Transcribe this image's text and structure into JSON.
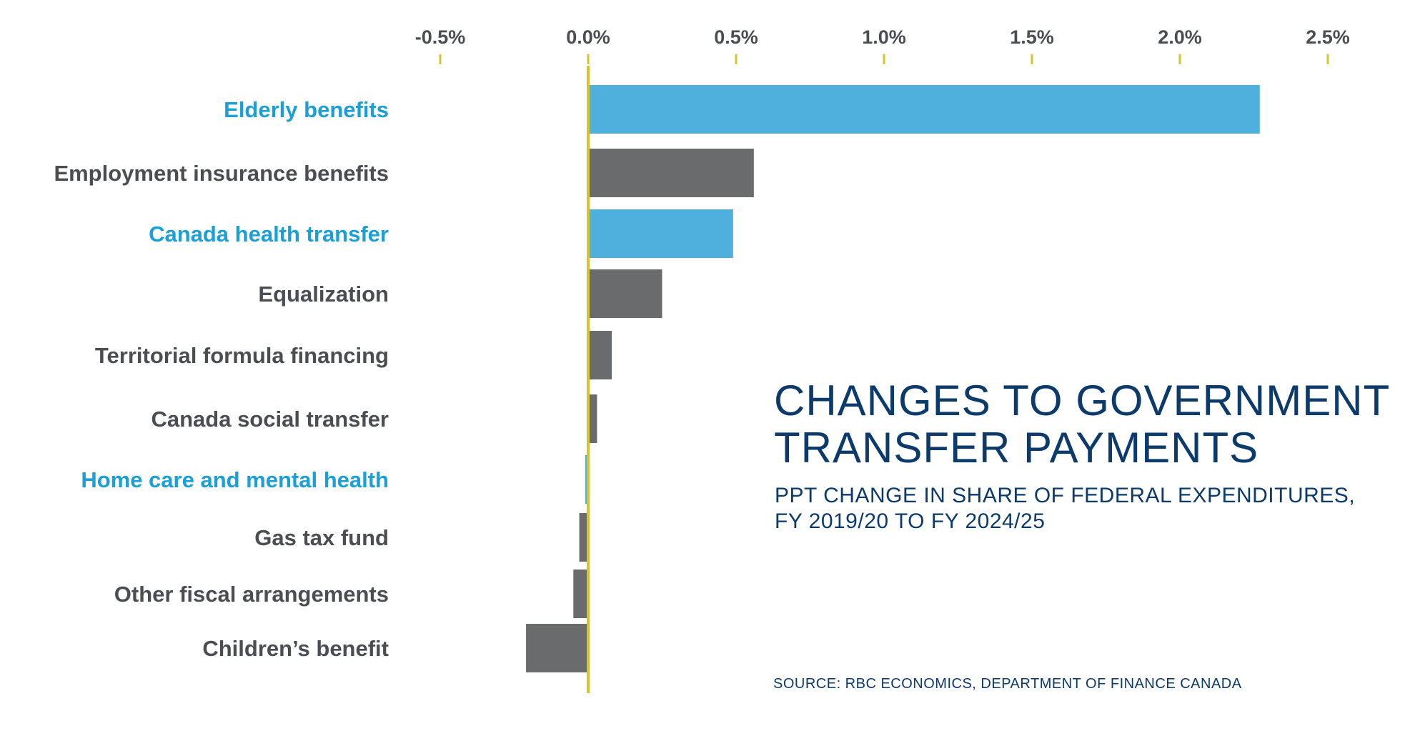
{
  "chart_data": {
    "type": "bar",
    "orientation": "horizontal",
    "title": "CHANGES TO GOVERNMENT TRANSFER PAYMENTS",
    "subtitle_lines": [
      "PPT CHANGE IN SHARE OF FEDERAL EXPENDITURES,",
      "FY 2019/20 TO FY 2024/25"
    ],
    "source": "SOURCE: RBC ECONOMICS, DEPARTMENT OF FINANCE CANADA",
    "xlim": [
      -0.5,
      2.5
    ],
    "xticks": [
      -0.5,
      0.0,
      0.5,
      1.0,
      1.5,
      2.0,
      2.5
    ],
    "xtick_labels": [
      "-0.5%",
      "0.0%",
      "0.5%",
      "1.0%",
      "1.5%",
      "2.0%",
      "2.5%"
    ],
    "categories": [
      "Elderly benefits",
      "Employment insurance benefits",
      "Canada health transfer",
      "Equalization",
      "Territorial formula financing",
      "Canada social transfer",
      "Home care and mental health",
      "Gas tax fund",
      "Other fiscal arrangements",
      "Children’s benefit"
    ],
    "values": [
      2.27,
      0.56,
      0.49,
      0.25,
      0.08,
      0.03,
      -0.01,
      -0.03,
      -0.05,
      -0.21
    ],
    "highlighted": [
      true,
      false,
      true,
      false,
      false,
      false,
      true,
      false,
      false,
      false
    ],
    "colors": {
      "highlight_bar": "#4fb0dd",
      "highlight_label": "#1a9fd6",
      "bar": "#6a6b6d",
      "label": "#4a4d52",
      "axis": "#d4c62a",
      "title": "#0b3a6b"
    }
  }
}
